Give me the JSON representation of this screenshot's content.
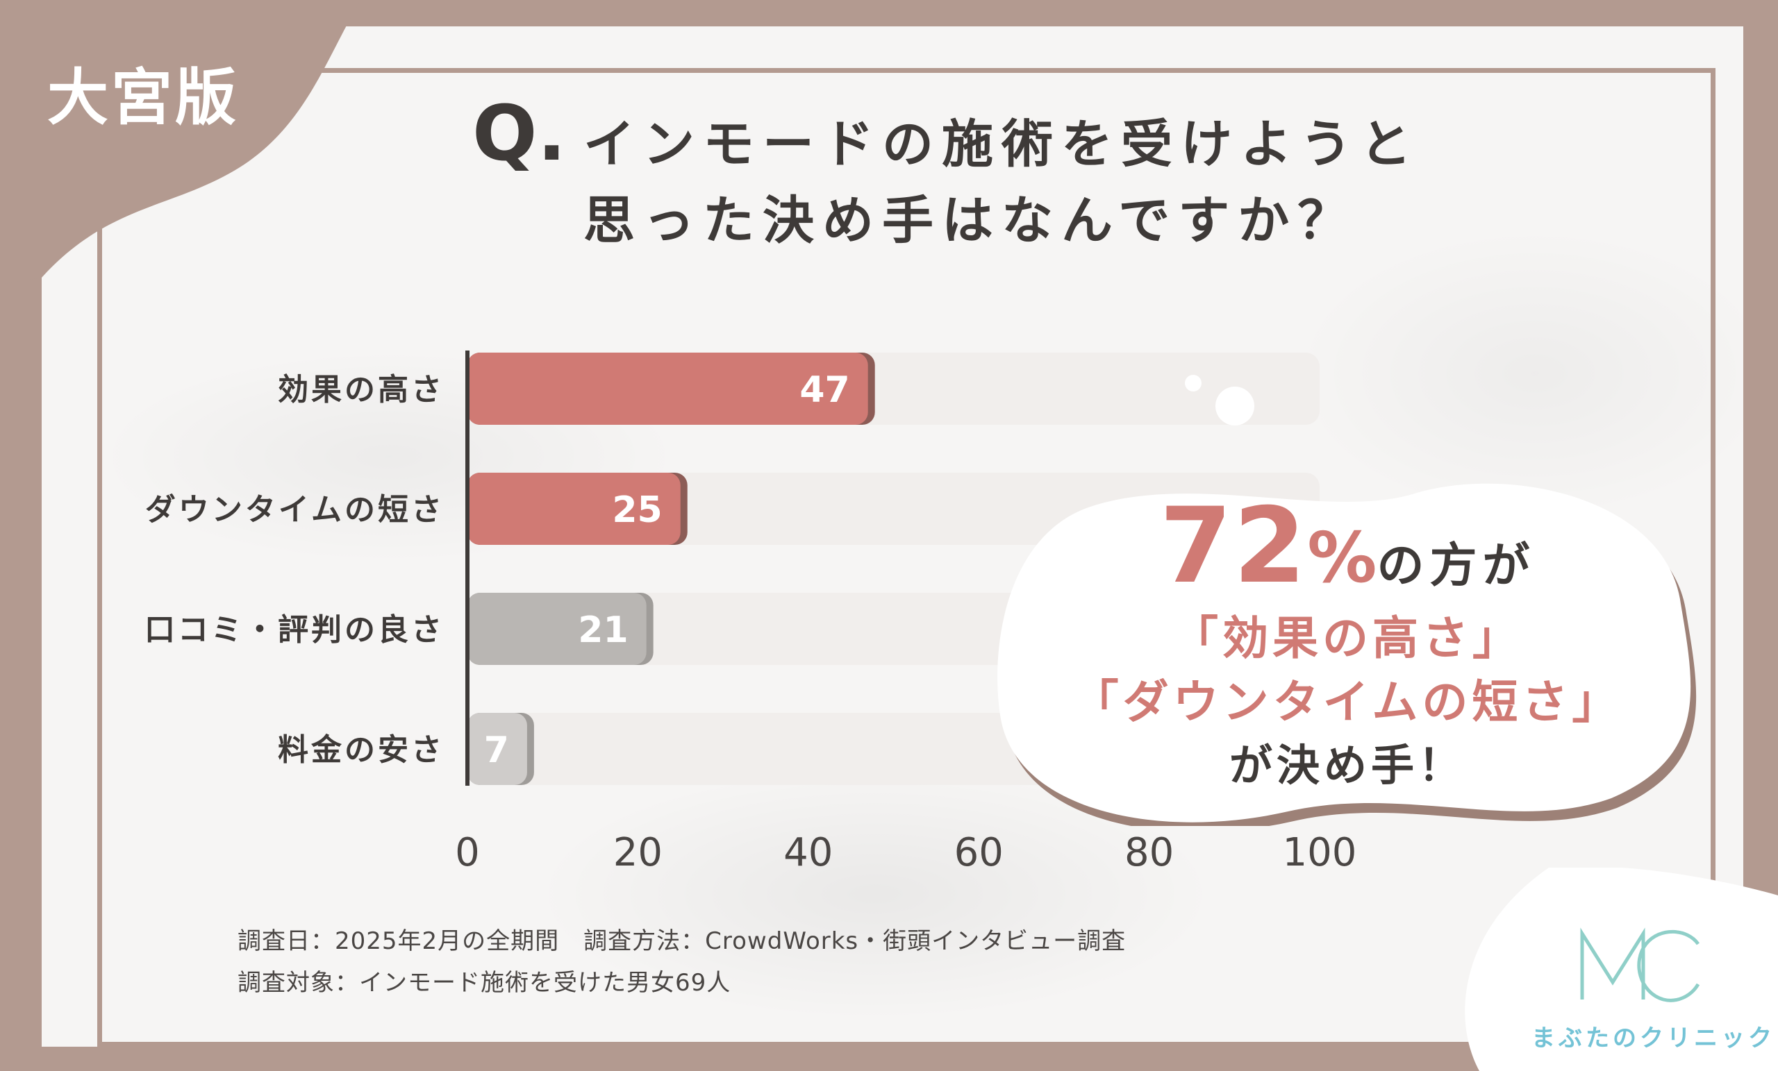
{
  "corner_label": "大宮版",
  "title": {
    "q_mark": "Q.",
    "line1": "インモードの施術を受けようと",
    "line2": "思った決め手はなんですか？"
  },
  "chart_data": {
    "type": "bar",
    "orientation": "horizontal",
    "categories": [
      "効果の高さ",
      "ダウンタイムの短さ",
      "口コミ・評判の良さ",
      "料金の安さ"
    ],
    "values": [
      47,
      25,
      21,
      7
    ],
    "xlim": [
      0,
      100
    ],
    "xticks": [
      "0",
      "20",
      "40",
      "60",
      "80",
      "100"
    ],
    "grid": false,
    "colors": {
      "highlight": "#d07a74",
      "normal": "#b9b6b3",
      "light": "#cfccca",
      "track": "#f1eeec",
      "axis": "#3e3a38"
    },
    "highlight_categories": [
      "効果の高さ",
      "ダウンタイムの短さ"
    ]
  },
  "callout": {
    "percent_number": "72",
    "percent_sign": "%",
    "percent_suffix": "の方が",
    "quote1": "「効果の高さ」",
    "quote2": "「ダウンタイムの短さ」",
    "conclusion": "が決め手！"
  },
  "notes": {
    "line1": "調査日：2025年2月の全期間　調査方法：CrowdWorks・街頭インタビュー調査",
    "line2": "調査対象：インモード施術を受けた男女69人"
  },
  "logo": {
    "mark": "MC",
    "name": "まぶたのクリニック",
    "color": "#74c3d6"
  }
}
